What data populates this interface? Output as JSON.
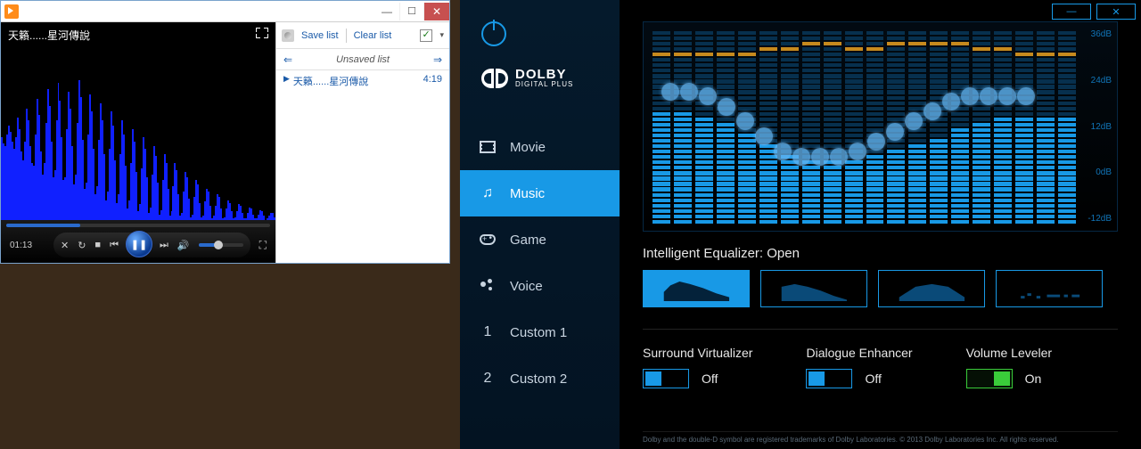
{
  "wmp": {
    "track_title": "天籟......星河傳說",
    "elapsed": "01:13",
    "seek_progress_pct": 28,
    "volume_pct": 45,
    "spectrum_heights_pct": [
      58,
      54,
      52,
      60,
      66,
      62,
      55,
      50,
      58,
      72,
      64,
      48,
      42,
      55,
      78,
      70,
      52,
      40,
      38,
      60,
      85,
      74,
      48,
      32,
      40,
      68,
      92,
      80,
      55,
      30,
      35,
      70,
      96,
      84,
      58,
      28,
      30,
      64,
      90,
      78,
      52,
      25,
      32,
      68,
      98,
      86,
      56,
      22,
      26,
      60,
      88,
      76,
      50,
      18,
      24,
      56,
      82,
      70,
      46,
      14,
      20,
      50,
      76,
      66,
      42,
      12,
      18,
      46,
      70,
      60,
      38,
      8,
      14,
      40,
      64,
      55,
      34,
      6,
      11,
      36,
      58,
      50,
      30,
      5,
      9,
      32,
      52,
      45,
      26,
      4,
      7,
      28,
      46,
      40,
      22,
      3,
      6,
      24,
      40,
      35,
      18,
      3,
      5,
      20,
      34,
      30,
      15,
      2,
      4,
      16,
      28,
      25,
      12,
      2,
      3,
      13,
      22,
      20,
      10,
      1,
      3,
      10,
      18,
      16,
      8,
      1,
      2,
      8,
      14,
      12,
      6,
      1,
      2,
      6,
      11,
      10,
      5,
      1,
      1,
      5,
      9,
      8,
      4,
      1,
      1,
      4,
      7,
      6,
      3,
      0,
      1,
      3,
      5,
      5,
      2
    ],
    "spectrum_color": "#1020ff",
    "playlist": {
      "save_label": "Save list",
      "clear_label": "Clear list",
      "header": "Unsaved list",
      "items": [
        {
          "name": "天籟......星河傳說",
          "duration": "4:19",
          "playing": true
        }
      ]
    }
  },
  "dolby": {
    "brand": "DOLBY",
    "subbrand": "DIGITAL PLUS",
    "nav": [
      {
        "id": "movie",
        "label": "Movie",
        "icon": "movie"
      },
      {
        "id": "music",
        "label": "Music",
        "icon": "music",
        "active": true
      },
      {
        "id": "game",
        "label": "Game",
        "icon": "game"
      },
      {
        "id": "voice",
        "label": "Voice",
        "icon": "voice"
      },
      {
        "id": "c1",
        "label": "Custom 1",
        "icon": "num1"
      },
      {
        "id": "c2",
        "label": "Custom 2",
        "icon": "num2"
      }
    ],
    "eq": {
      "db_labels": [
        "36dB",
        "24dB",
        "12dB",
        "0dB",
        "-12dB"
      ],
      "db_label_color": "#1175b8",
      "bands": 20,
      "seg_count": 36,
      "bg_panel": "linear-gradient(180deg, rgba(5,30,52,0.35) 0%, rgba(0,0,0,0.9) 100%)",
      "dim_color": "#07304e",
      "lit_color": "#1899e6",
      "peak_color": "#c78a1e",
      "dot_color": "rgba(100,180,240,0.75)",
      "fill_level": [
        20,
        20,
        19,
        18,
        16,
        14,
        12,
        11,
        11,
        11,
        12,
        13,
        14,
        15,
        17,
        18,
        19,
        19,
        19,
        19
      ],
      "curve_level": [
        25,
        25,
        24,
        22,
        19,
        16,
        13,
        12,
        12,
        12,
        13,
        15,
        17,
        19,
        21,
        23,
        24,
        24,
        24,
        24
      ],
      "peak_level": [
        31,
        31,
        31,
        31,
        31,
        32,
        32,
        33,
        33,
        32,
        32,
        33,
        33,
        33,
        33,
        32,
        32,
        31,
        31,
        31
      ]
    },
    "ieq": {
      "label_prefix": "Intelligent Equalizer: ",
      "label_value": "Open",
      "presets": [
        "open",
        "rich",
        "focused",
        "balanced"
      ],
      "active_index": 0,
      "shape_fill": "#0a4a78",
      "shape_fill_active": "#04223a"
    },
    "toggles": [
      {
        "label": "Surround Virtualizer",
        "value": "Off",
        "on": false
      },
      {
        "label": "Dialogue Enhancer",
        "value": "Off",
        "on": false
      },
      {
        "label": "Volume Leveler",
        "value": "On",
        "on": true
      }
    ],
    "footer": "Dolby and the double-D symbol are registered trademarks of Dolby Laboratories. © 2013 Dolby Laboratories Inc. All rights reserved.",
    "colors": {
      "accent": "#1899e6",
      "sidebar_bg_top": "#051a2c",
      "sidebar_bg_bottom": "#031322",
      "on_green": "#3acc3a"
    }
  }
}
